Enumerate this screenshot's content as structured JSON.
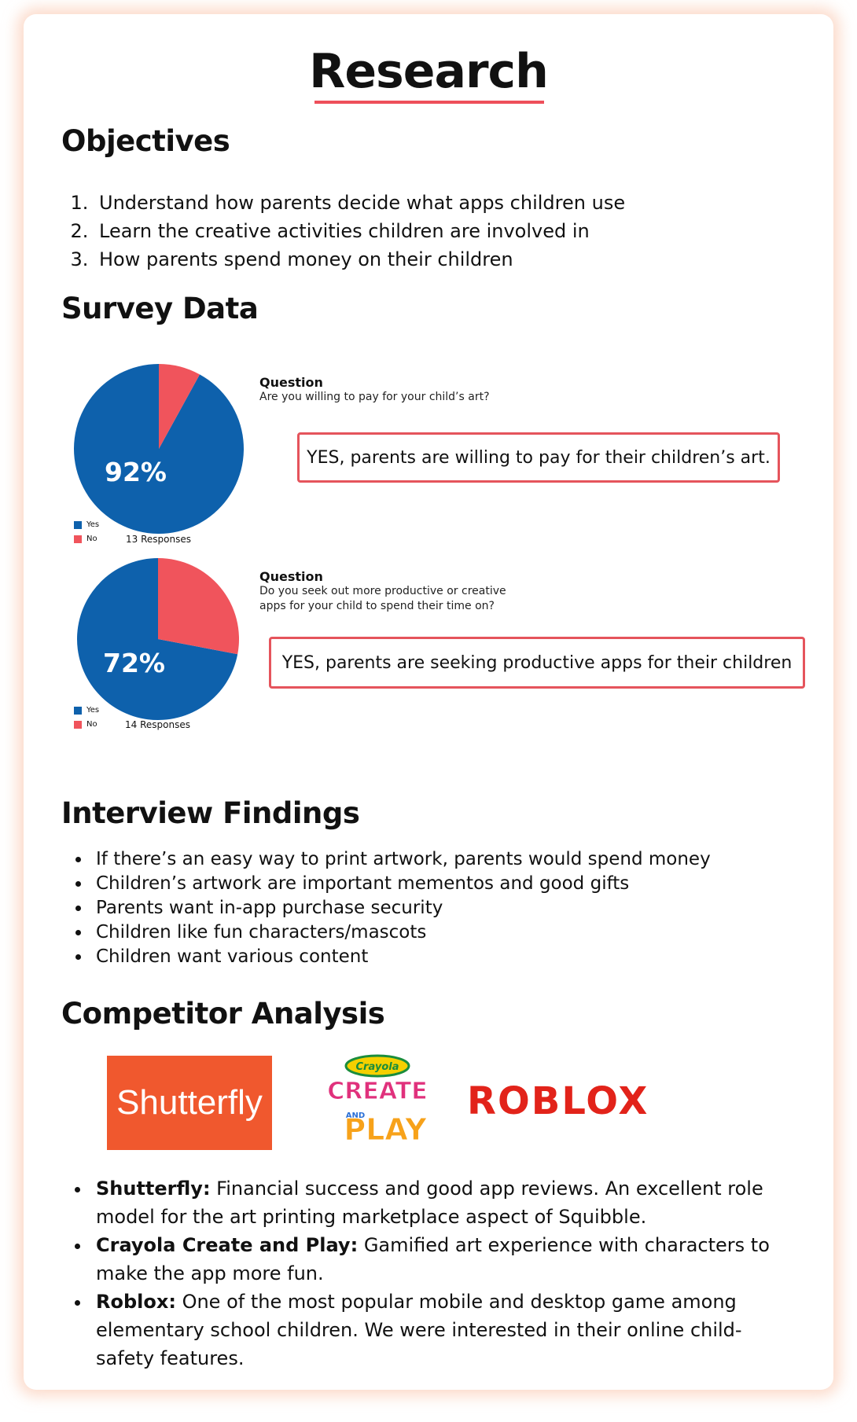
{
  "title": "Research",
  "objectives": {
    "heading": "Objectives",
    "items": [
      "Understand how parents decide what apps children use",
      "Learn the creative activities children are involved in",
      "How parents spend money on their children"
    ]
  },
  "survey": {
    "heading": "Survey Data",
    "charts": [
      {
        "question_label": "Question",
        "question": "Are you willing to pay for your child’s art?",
        "percent_label": "92%",
        "yes_fraction": 0.92,
        "responses": "13 Responses",
        "legend_yes": "Yes",
        "legend_no": "No",
        "callout": "YES, parents are willing to pay for their children’s art."
      },
      {
        "question_label": "Question",
        "question": "Do you seek out more productive or creative apps for your child to spend their time on?",
        "percent_label": "72%",
        "yes_fraction": 0.72,
        "responses": "14 Responses",
        "legend_yes": "Yes",
        "legend_no": "No",
        "callout": "YES, parents are seeking productive apps for their children"
      }
    ],
    "colors": {
      "yes": "#0e61ac",
      "no": "#f0545c"
    }
  },
  "interview": {
    "heading": "Interview Findings",
    "items": [
      "If there’s an easy way to print artwork, parents would spend money",
      "Children’s artwork are important mementos and good gifts",
      "Parents want in-app purchase security",
      "Children like fun characters/mascots",
      "Children want various content"
    ]
  },
  "competitors": {
    "heading": "Competitor Analysis",
    "logos": {
      "shutterfly": "Shutterfly",
      "crayola_brand": "Crayola",
      "crayola_line1": "CREATE",
      "crayola_line2": "AND",
      "crayola_line3": "PLAY",
      "roblox": "ROBLOX"
    },
    "items": [
      {
        "name": "Shutterfly:",
        "text": " Financial success and good app reviews. An excellent role model for the art printing marketplace aspect of Squibble."
      },
      {
        "name": "Crayola Create and Play:",
        "text": " Gamified art experience with characters to make the app more fun."
      },
      {
        "name": "Roblox:",
        "text": " One of the most popular mobile and desktop game among elementary school children. We were interested in their online child-safety features."
      }
    ]
  },
  "accent": "#ee4f5a"
}
